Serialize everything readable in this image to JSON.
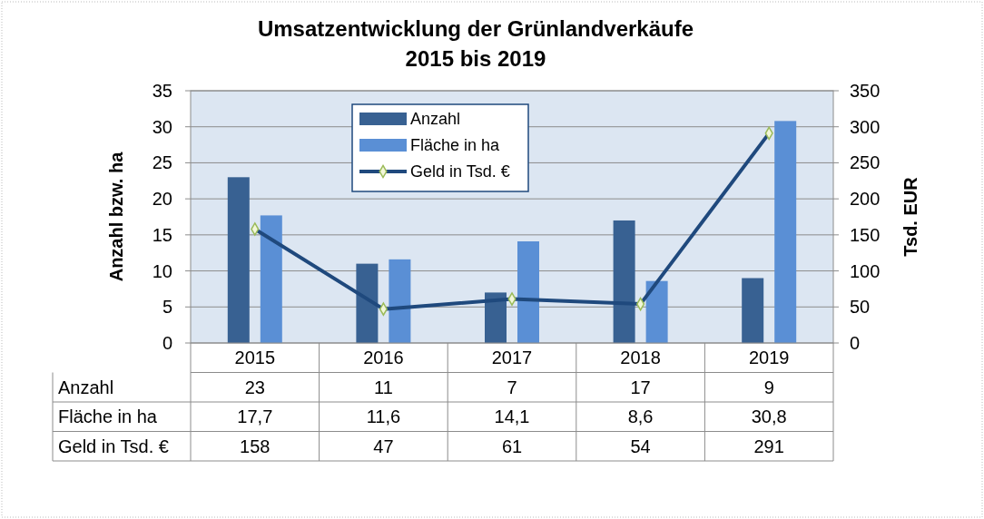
{
  "chart_data": {
    "type": "bar",
    "title": "Umsatzentwicklung der Grünlandverkäufe\n2015 bis 2019",
    "ylabel": "Anzahl bzw. ha",
    "y2label": "Tsd. EUR",
    "categories": [
      "2015",
      "2016",
      "2017",
      "2018",
      "2019"
    ],
    "series": [
      {
        "name": "Anzahl",
        "color": "#386192",
        "values": [
          23,
          11,
          7,
          17,
          9
        ],
        "value_labels": [
          "23",
          "11",
          "7",
          "17",
          "9"
        ]
      },
      {
        "name": "Fläche in ha",
        "color": "#5a8fd5",
        "values": [
          17.7,
          11.6,
          14.1,
          8.6,
          30.8
        ],
        "value_labels": [
          "17,7",
          "11,6",
          "14,1",
          "8,6",
          "30,8"
        ]
      },
      {
        "name": "Geld in Tsd. €",
        "type": "line",
        "axis": "y2",
        "color": "#1f497d",
        "marker": "diamond",
        "line_style": "solid",
        "values": [
          158,
          47,
          61,
          54,
          291
        ],
        "value_labels": [
          "158",
          "47",
          "61",
          "54",
          "291"
        ]
      }
    ],
    "ylim": [
      0,
      35
    ],
    "yticks": [
      0,
      5,
      10,
      15,
      20,
      25,
      30,
      35
    ],
    "y2lim": [
      0,
      350
    ],
    "y2ticks": [
      0,
      50,
      100,
      150,
      200,
      250,
      300,
      350
    ],
    "grid": "y",
    "legend": "top"
  }
}
